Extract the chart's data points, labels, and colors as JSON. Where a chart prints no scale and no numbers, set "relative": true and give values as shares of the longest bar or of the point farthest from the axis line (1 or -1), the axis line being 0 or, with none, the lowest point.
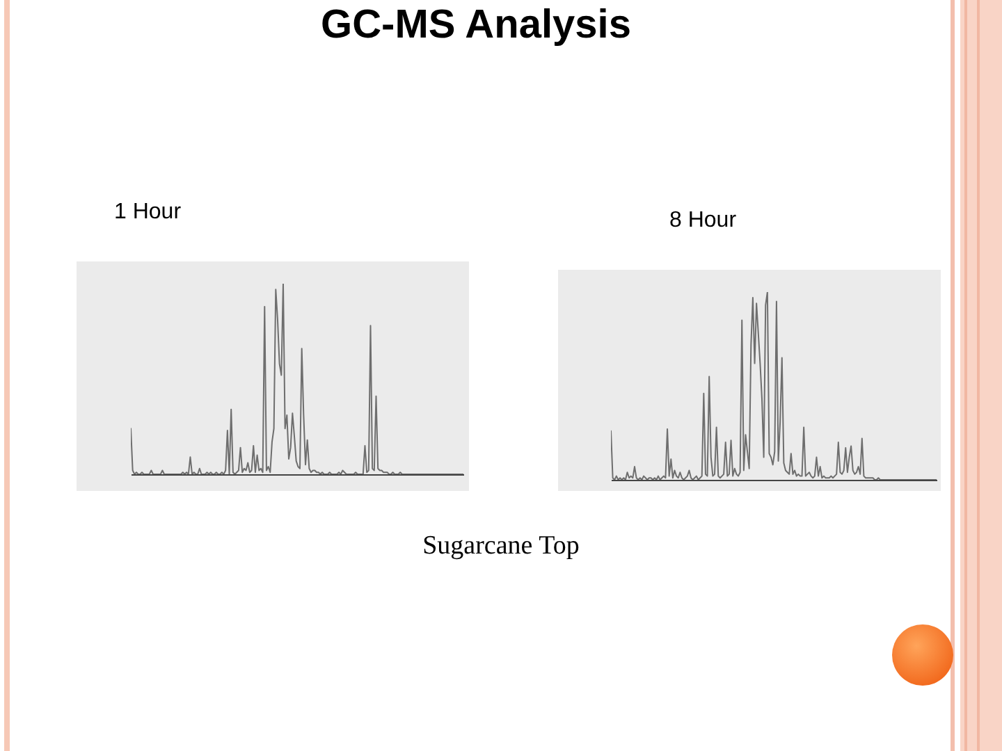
{
  "chart_data": [
    {
      "type": "other",
      "title": "GC-MS Analysis",
      "annotations": [
        "Sugarcane Top"
      ]
    },
    {
      "type": "line",
      "title": "1 Hour",
      "relative": true,
      "color": "#6e6e6e",
      "categories": [
        null,
        null,
        null,
        null,
        null,
        null,
        null,
        null,
        null,
        null,
        null,
        null,
        null,
        null,
        null,
        null,
        null,
        null,
        null,
        null,
        null,
        null,
        null,
        null,
        null,
        null,
        null,
        null,
        null,
        null,
        null,
        null,
        null,
        null,
        null,
        null,
        null,
        null,
        null,
        null,
        null,
        null,
        null,
        null,
        null,
        null,
        null,
        null,
        null,
        null,
        null,
        null,
        null,
        null,
        null,
        null,
        null,
        null,
        null,
        null,
        null,
        null,
        null,
        null,
        null,
        null,
        null,
        null,
        null,
        null,
        null,
        null,
        null,
        null,
        null,
        null,
        null,
        null,
        null,
        null,
        null,
        null,
        null,
        null,
        null,
        null,
        null,
        null,
        null,
        null,
        null,
        null,
        null,
        null,
        null,
        null,
        null,
        null,
        null,
        null,
        null,
        null,
        null,
        null,
        null,
        null,
        null,
        null,
        null,
        null,
        null,
        null,
        null,
        null,
        null,
        null,
        null,
        null,
        null,
        null,
        null,
        null,
        null,
        null,
        null,
        null,
        null,
        null,
        null,
        null,
        null,
        null,
        null,
        null,
        null,
        null,
        null,
        null,
        null,
        null,
        null,
        null,
        null,
        null,
        null,
        null,
        null,
        null,
        null,
        null,
        null,
        null,
        null,
        null,
        null,
        null,
        null,
        null,
        null,
        null,
        null,
        null,
        null,
        null,
        null,
        null,
        null,
        null,
        null,
        null,
        null,
        null,
        null,
        null,
        null,
        null,
        null,
        null,
        null,
        null
      ],
      "values": [
        0.24,
        0.02,
        0,
        0.01,
        0,
        0,
        0.01,
        0,
        0,
        0,
        0,
        0.02,
        0,
        0,
        0,
        0,
        0,
        0.02,
        0,
        0,
        0,
        0,
        0,
        0,
        0,
        0,
        0,
        0,
        0.01,
        0,
        0.01,
        0,
        0.09,
        0,
        0.01,
        0,
        0,
        0.03,
        0,
        0,
        0,
        0.01,
        0,
        0.01,
        0,
        0,
        0.01,
        0,
        0,
        0.01,
        0,
        0.02,
        0.23,
        0,
        0.34,
        0.01,
        0,
        0.01,
        0.02,
        0.14,
        0.01,
        0.03,
        0.02,
        0.06,
        0.01,
        0.02,
        0.15,
        0.01,
        0.1,
        0.02,
        0.03,
        0.01,
        0.88,
        0.02,
        0.04,
        0.01,
        0.17,
        0.24,
        0.97,
        0.81,
        0.58,
        0.52,
        1,
        0.24,
        0.31,
        0.08,
        0.14,
        0.32,
        0.2,
        0.07,
        0.04,
        0.03,
        0.66,
        0.31,
        0.05,
        0.18,
        0.03,
        0.01,
        0.02,
        0.02,
        0.01,
        0.01,
        0,
        0.01,
        0,
        0,
        0,
        0.01,
        0,
        0,
        0,
        0,
        0.01,
        0,
        0.02,
        0.01,
        0,
        0,
        0,
        0,
        0,
        0.01,
        0,
        0,
        0,
        0,
        0.15,
        0.01,
        0.02,
        0.78,
        0.03,
        0.02,
        0.41,
        0.03,
        0.02,
        0.02,
        0.01,
        0.01,
        0.01,
        0,
        0,
        0.01,
        0,
        0,
        0,
        0.01,
        0,
        0,
        0,
        0,
        0,
        0,
        0,
        0,
        0,
        0,
        0,
        0,
        0,
        0,
        0,
        0,
        0,
        0,
        0,
        0,
        0,
        0,
        0,
        0,
        0,
        0,
        0,
        0,
        0,
        0,
        0,
        0,
        0,
        0
      ]
    },
    {
      "type": "line",
      "title": "8 Hour",
      "relative": true,
      "color": "#6e6e6e",
      "categories": [
        null,
        null,
        null,
        null,
        null,
        null,
        null,
        null,
        null,
        null,
        null,
        null,
        null,
        null,
        null,
        null,
        null,
        null,
        null,
        null,
        null,
        null,
        null,
        null,
        null,
        null,
        null,
        null,
        null,
        null,
        null,
        null,
        null,
        null,
        null,
        null,
        null,
        null,
        null,
        null,
        null,
        null,
        null,
        null,
        null,
        null,
        null,
        null,
        null,
        null,
        null,
        null,
        null,
        null,
        null,
        null,
        null,
        null,
        null,
        null,
        null,
        null,
        null,
        null,
        null,
        null,
        null,
        null,
        null,
        null,
        null,
        null,
        null,
        null,
        null,
        null,
        null,
        null,
        null,
        null,
        null,
        null,
        null,
        null,
        null,
        null,
        null,
        null,
        null,
        null,
        null,
        null,
        null,
        null,
        null,
        null,
        null,
        null,
        null,
        null,
        null,
        null,
        null,
        null,
        null,
        null,
        null,
        null,
        null,
        null,
        null,
        null,
        null,
        null,
        null,
        null,
        null,
        null,
        null,
        null,
        null,
        null,
        null,
        null,
        null,
        null,
        null,
        null,
        null,
        null,
        null,
        null,
        null,
        null,
        null,
        null,
        null,
        null,
        null,
        null,
        null,
        null,
        null,
        null,
        null,
        null,
        null,
        null,
        null,
        null,
        null,
        null,
        null,
        null,
        null,
        null,
        null,
        null,
        null,
        null,
        null,
        null,
        null,
        null,
        null,
        null,
        null,
        null,
        null,
        null,
        null,
        null,
        null,
        null,
        null,
        null,
        null,
        null,
        null,
        null
      ],
      "values": [
        0.26,
        0.01,
        0,
        0.02,
        0,
        0.01,
        0,
        0.01,
        0,
        0.04,
        0.01,
        0.02,
        0.01,
        0.07,
        0.01,
        0,
        0.01,
        0,
        0.02,
        0.01,
        0,
        0.01,
        0.01,
        0,
        0.01,
        0,
        0.02,
        0,
        0.01,
        0.02,
        0.01,
        0.27,
        0.02,
        0.11,
        0.01,
        0.05,
        0.02,
        0.01,
        0.04,
        0.01,
        0,
        0.01,
        0.02,
        0.05,
        0.01,
        0,
        0.01,
        0.02,
        0,
        0.01,
        0.02,
        0.46,
        0.03,
        0.02,
        0.55,
        0.12,
        0.02,
        0.03,
        0.28,
        0.02,
        0.01,
        0.02,
        0.03,
        0.2,
        0.02,
        0.03,
        0.21,
        0.02,
        0.06,
        0.03,
        0.02,
        0.04,
        0.85,
        0.05,
        0.24,
        0.15,
        0.06,
        0.72,
        0.97,
        0.62,
        0.94,
        0.78,
        0.62,
        0.43,
        0.12,
        0.93,
        1,
        0.14,
        0.12,
        0.08,
        0.15,
        0.95,
        0.1,
        0.31,
        0.65,
        0.09,
        0.05,
        0.04,
        0.03,
        0.14,
        0.03,
        0.05,
        0.02,
        0.03,
        0.02,
        0.02,
        0.28,
        0.02,
        0.03,
        0.04,
        0.02,
        0.01,
        0.02,
        0.12,
        0.02,
        0.07,
        0.01,
        0.02,
        0.01,
        0.01,
        0.01,
        0.02,
        0.01,
        0.02,
        0.03,
        0.2,
        0.04,
        0.03,
        0.05,
        0.17,
        0.04,
        0.12,
        0.18,
        0.05,
        0.03,
        0.04,
        0.07,
        0.03,
        0.22,
        0.02,
        0.01,
        0.01,
        0.01,
        0.01,
        0.01,
        0,
        0,
        0.01,
        0,
        0,
        0,
        0,
        0,
        0,
        0,
        0,
        0,
        0,
        0,
        0,
        0,
        0,
        0,
        0,
        0,
        0,
        0,
        0,
        0,
        0,
        0,
        0,
        0,
        0,
        0,
        0,
        0,
        0,
        0,
        0
      ]
    }
  ]
}
